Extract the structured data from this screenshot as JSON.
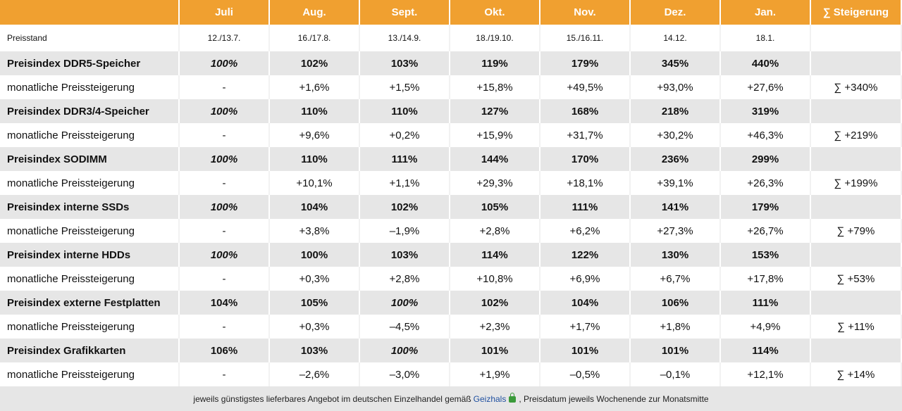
{
  "header": {
    "columns": [
      "",
      "Juli",
      "Aug.",
      "Sept.",
      "Okt.",
      "Nov.",
      "Dez.",
      "Jan.",
      "∑ Steigerung"
    ]
  },
  "preisstand": {
    "label": "Preisstand",
    "values": [
      "12./13.7.",
      "16./17.8.",
      "13./14.9.",
      "18./19.10.",
      "15./16.11.",
      "14.12.",
      "18.1.",
      ""
    ]
  },
  "rows": [
    {
      "type": "index",
      "label": "Preisindex DDR5-Speicher",
      "values": [
        "100%",
        "102%",
        "103%",
        "119%",
        "179%",
        "345%",
        "440%",
        ""
      ],
      "italic": [
        0
      ]
    },
    {
      "type": "change",
      "label": "monatliche Preissteigerung",
      "values": [
        "-",
        "+1,6%",
        "+1,5%",
        "+15,8%",
        "+49,5%",
        "+93,0%",
        "+27,6%",
        "∑ +340%"
      ]
    },
    {
      "type": "index",
      "label": "Preisindex DDR3/4-Speicher",
      "values": [
        "100%",
        "110%",
        "110%",
        "127%",
        "168%",
        "218%",
        "319%",
        ""
      ],
      "italic": [
        0
      ]
    },
    {
      "type": "change",
      "label": "monatliche Preissteigerung",
      "values": [
        "-",
        "+9,6%",
        "+0,2%",
        "+15,9%",
        "+31,7%",
        "+30,2%",
        "+46,3%",
        "∑ +219%"
      ]
    },
    {
      "type": "index",
      "label": "Preisindex SODIMM",
      "values": [
        "100%",
        "110%",
        "111%",
        "144%",
        "170%",
        "236%",
        "299%",
        ""
      ],
      "italic": [
        0
      ]
    },
    {
      "type": "change",
      "label": "monatliche Preissteigerung",
      "values": [
        "-",
        "+10,1%",
        "+1,1%",
        "+29,3%",
        "+18,1%",
        "+39,1%",
        "+26,3%",
        "∑ +199%"
      ]
    },
    {
      "type": "index",
      "label": "Preisindex interne SSDs",
      "values": [
        "100%",
        "104%",
        "102%",
        "105%",
        "111%",
        "141%",
        "179%",
        ""
      ],
      "italic": [
        0
      ]
    },
    {
      "type": "change",
      "label": "monatliche Preissteigerung",
      "values": [
        "-",
        "+3,8%",
        "–1,9%",
        "+2,8%",
        "+6,2%",
        "+27,3%",
        "+26,7%",
        "∑ +79%"
      ]
    },
    {
      "type": "index",
      "label": "Preisindex interne HDDs",
      "values": [
        "100%",
        "100%",
        "103%",
        "114%",
        "122%",
        "130%",
        "153%",
        ""
      ],
      "italic": [
        0
      ]
    },
    {
      "type": "change",
      "label": "monatliche Preissteigerung",
      "values": [
        "-",
        "+0,3%",
        "+2,8%",
        "+10,8%",
        "+6,9%",
        "+6,7%",
        "+17,8%",
        "∑ +53%"
      ]
    },
    {
      "type": "index",
      "label": "Preisindex externe Festplatten",
      "values": [
        "104%",
        "105%",
        "100%",
        "102%",
        "104%",
        "106%",
        "111%",
        ""
      ],
      "italic": [
        2
      ]
    },
    {
      "type": "change",
      "label": "monatliche Preissteigerung",
      "values": [
        "-",
        "+0,3%",
        "–4,5%",
        "+2,3%",
        "+1,7%",
        "+1,8%",
        "+4,9%",
        "∑ +11%"
      ]
    },
    {
      "type": "index",
      "label": "Preisindex Grafikkarten",
      "values": [
        "106%",
        "103%",
        "100%",
        "101%",
        "101%",
        "101%",
        "114%",
        ""
      ],
      "italic": [
        2
      ]
    },
    {
      "type": "change",
      "label": "monatliche Preissteigerung",
      "values": [
        "-",
        "–2,6%",
        "–3,0%",
        "+1,9%",
        "–0,5%",
        "–0,1%",
        "+12,1%",
        "∑ +14%"
      ]
    }
  ],
  "footer": {
    "before": "jeweils günstigstes lieferbares Angebot im deutschen Einzelhandel gemäß",
    "link": "Geizhals",
    "after": ", Preisdatum jeweils Wochenende zur Monatsmitte"
  },
  "colors": {
    "header": "#f0a030",
    "band": "#e6e6e6",
    "link": "#2050a0"
  }
}
